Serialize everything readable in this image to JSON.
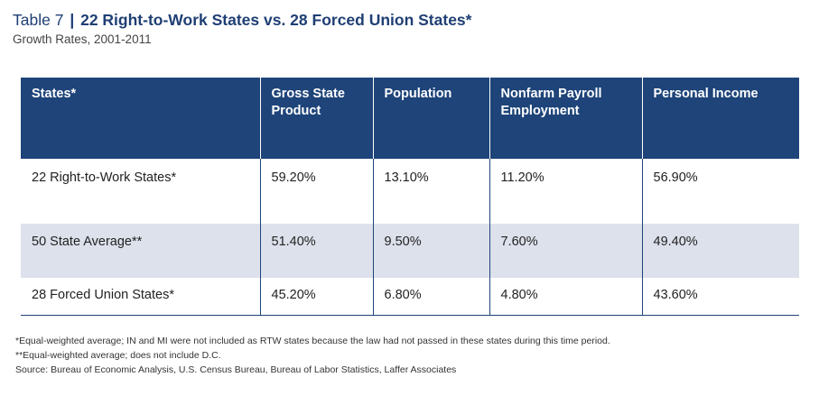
{
  "title": {
    "prefix": "Table 7",
    "separator": "|",
    "main": "22 Right-to-Work States vs. 28 Forced Union States*"
  },
  "subtitle": "Growth Rates, 2001-2011",
  "table": {
    "headers": [
      "States*",
      "Gross State Product",
      "Population",
      "Nonfarm Payroll Employment",
      "Personal Income"
    ],
    "rows": [
      [
        "22 Right-to-Work States*",
        "59.20%",
        "13.10%",
        "11.20%",
        "56.90%"
      ],
      [
        "50 State Average**",
        "51.40%",
        "9.50%",
        "7.60%",
        "49.40%"
      ],
      [
        "28 Forced Union States*",
        "45.20%",
        "6.80%",
        "4.80%",
        "43.60%"
      ]
    ]
  },
  "notes": {
    "note1": "*Equal-weighted average; IN and MI were not included as RTW states because the law had not passed in these states during this time period.",
    "note2": "**Equal-weighted average; does not include D.C.",
    "source": "Source: Bureau of Economic Analysis, U.S. Census Bureau, Bureau of Labor Statistics, Laffer Associates"
  },
  "colors": {
    "header_bg": "#1e4479",
    "title": "#1f3f74",
    "stripe": "#dde1ec"
  }
}
